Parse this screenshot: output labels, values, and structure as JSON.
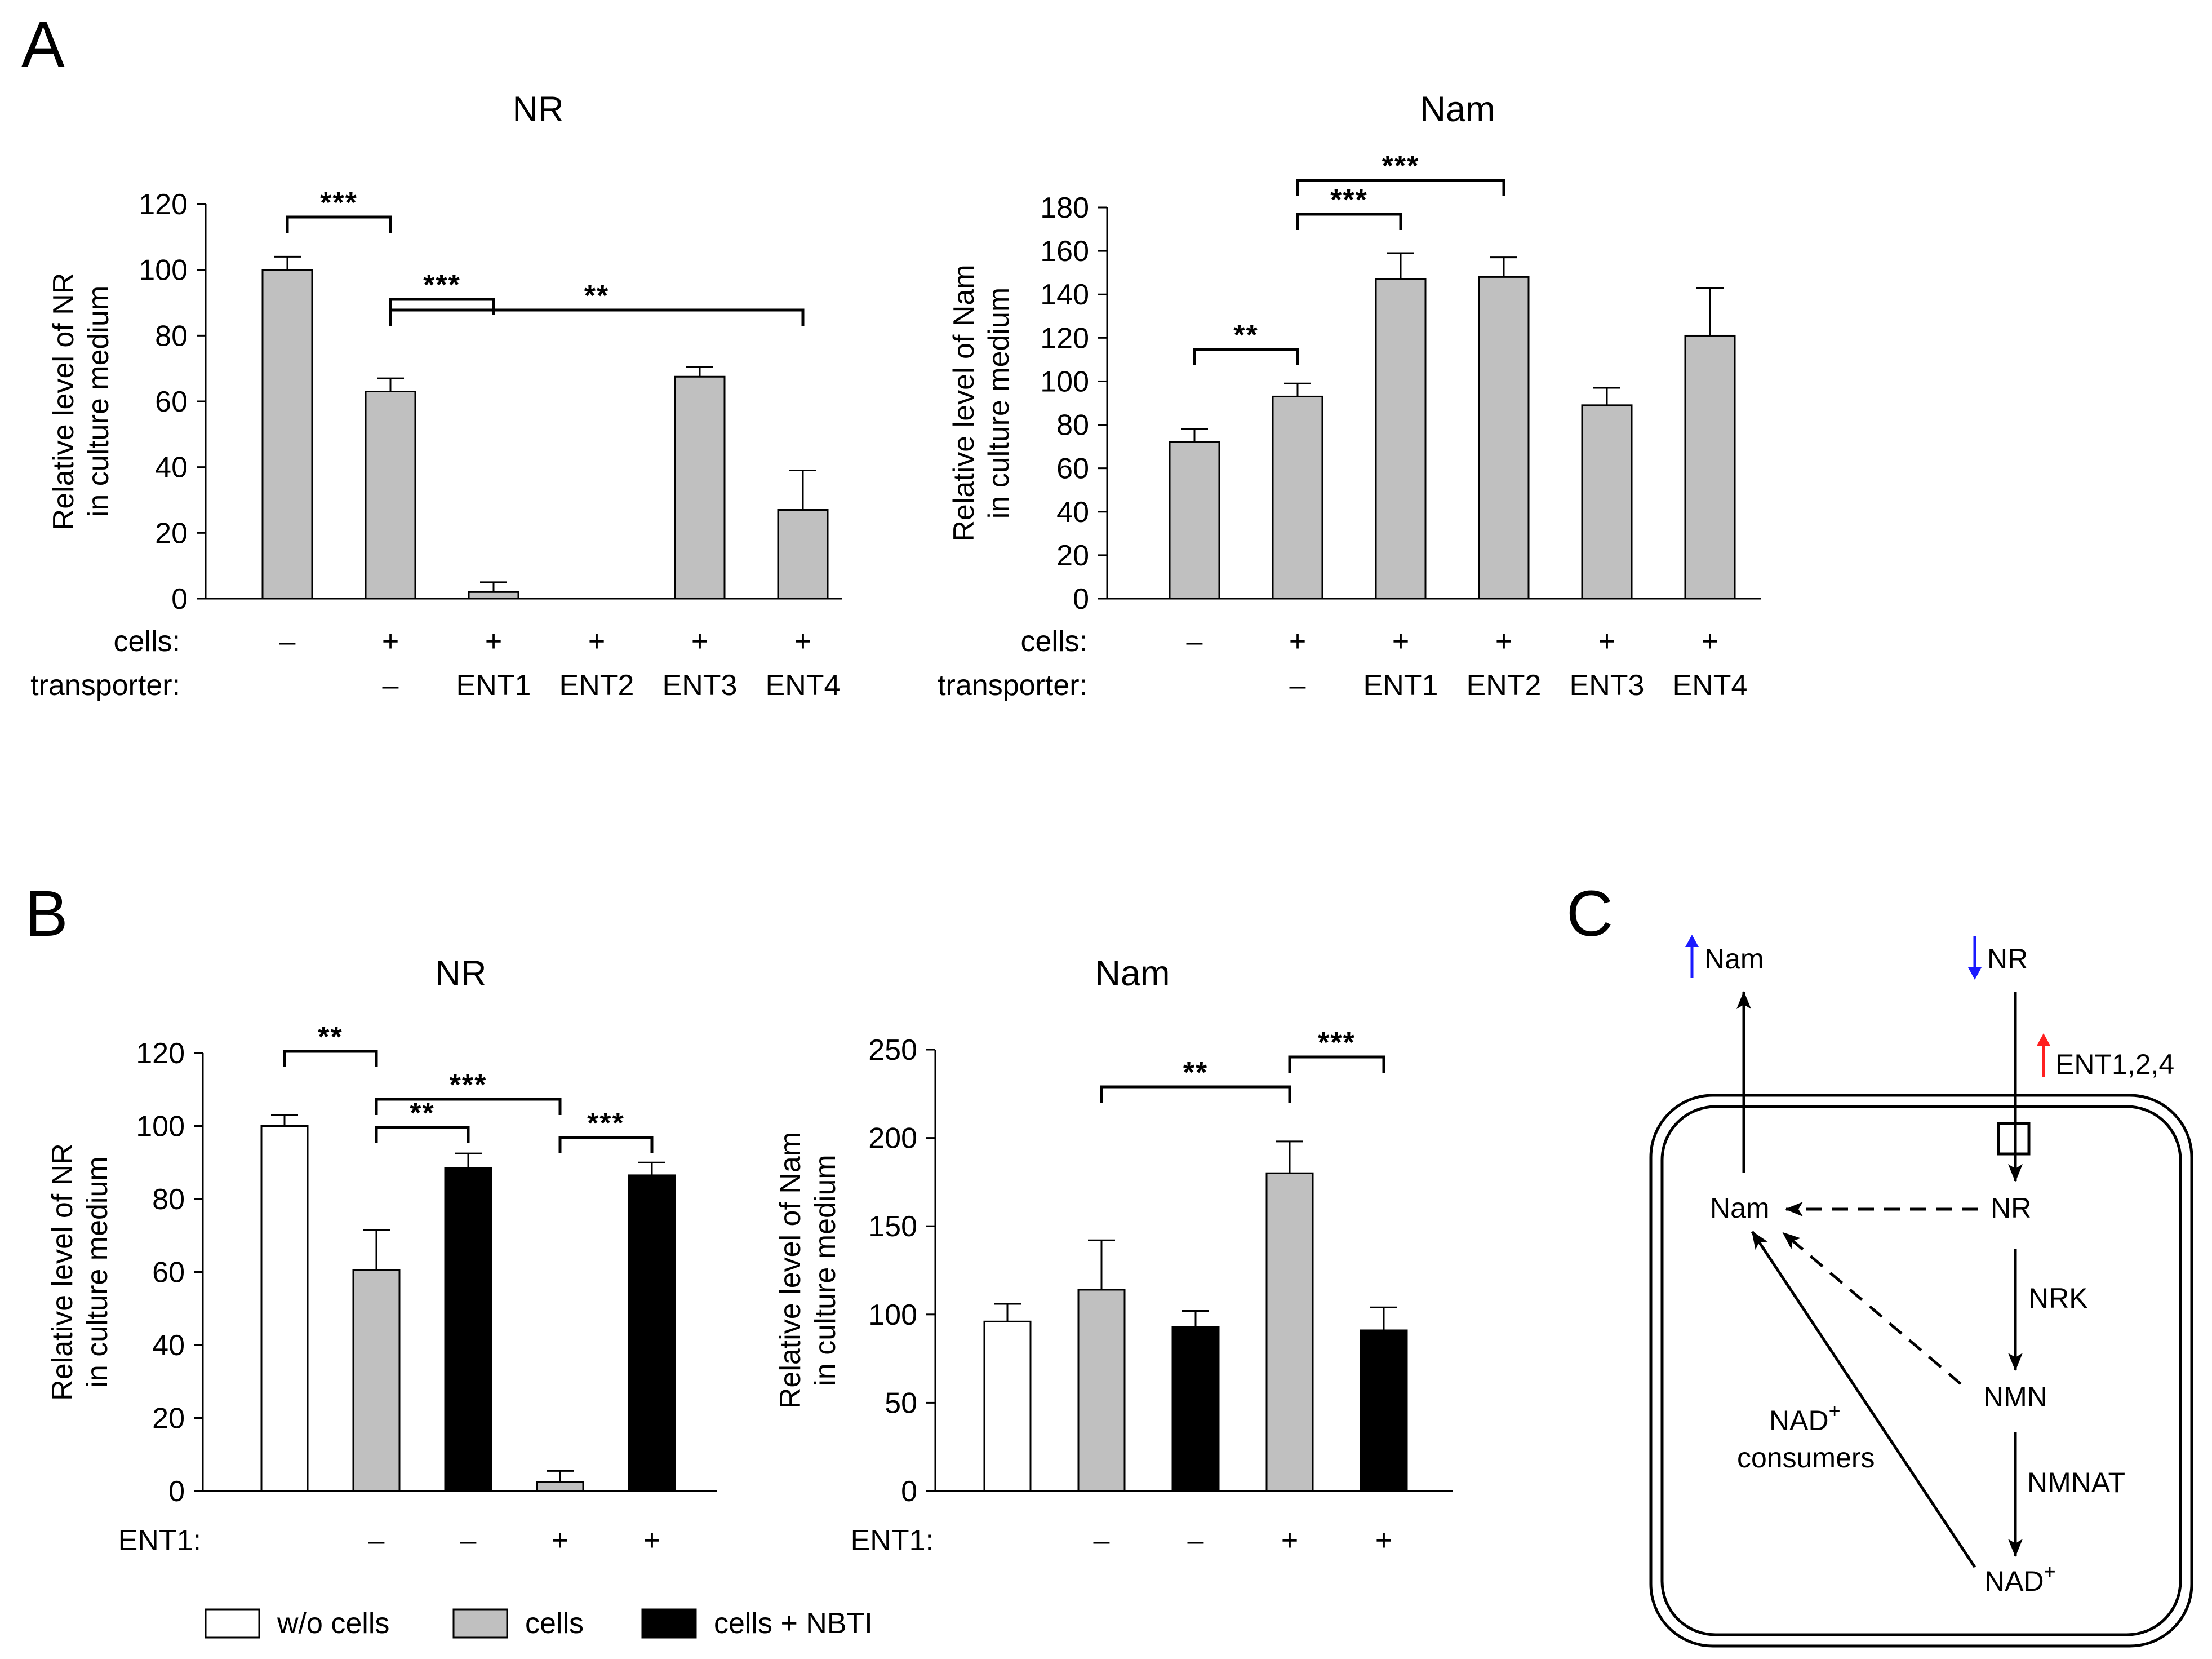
{
  "panels": {
    "a": "A",
    "b": "B",
    "c": "C"
  },
  "chart_data": [
    {
      "id": "A-NR",
      "panel": "A",
      "type": "bar",
      "title": "NR",
      "ylabel": [
        "Relative level of NR",
        "in culture medium"
      ],
      "ylim": [
        0,
        120
      ],
      "yticks": [
        0,
        20,
        40,
        60,
        80,
        100,
        120
      ],
      "row_labels": [
        "cells:",
        "transporter:"
      ],
      "categories": [
        {
          "cells": "–",
          "transporter": ""
        },
        {
          "cells": "+",
          "transporter": "–"
        },
        {
          "cells": "+",
          "transporter": "ENT1"
        },
        {
          "cells": "+",
          "transporter": "ENT2"
        },
        {
          "cells": "+",
          "transporter": "ENT3"
        },
        {
          "cells": "+",
          "transporter": "ENT4"
        }
      ],
      "values": [
        100,
        63,
        2,
        0,
        67.5,
        27
      ],
      "errors": [
        4,
        4,
        3,
        0,
        3,
        12
      ],
      "fills": [
        "gray",
        "gray",
        "gray",
        "gray",
        "gray",
        "gray"
      ],
      "significance": [
        {
          "from": 0,
          "to": 1,
          "label": "***"
        },
        {
          "from": 1,
          "to": 2,
          "label": "***"
        },
        {
          "from": 1,
          "to": 5,
          "label": "**"
        }
      ]
    },
    {
      "id": "A-Nam",
      "panel": "A",
      "type": "bar",
      "title": "Nam",
      "ylabel": [
        "Relative level of Nam",
        "in culture medium"
      ],
      "ylim": [
        0,
        180
      ],
      "yticks": [
        0,
        20,
        40,
        60,
        80,
        100,
        120,
        140,
        160,
        180
      ],
      "row_labels": [
        "cells:",
        "transporter:"
      ],
      "categories": [
        {
          "cells": "–",
          "transporter": ""
        },
        {
          "cells": "+",
          "transporter": "–"
        },
        {
          "cells": "+",
          "transporter": "ENT1"
        },
        {
          "cells": "+",
          "transporter": "ENT2"
        },
        {
          "cells": "+",
          "transporter": "ENT3"
        },
        {
          "cells": "+",
          "transporter": "ENT4"
        }
      ],
      "values": [
        72,
        93,
        147,
        148,
        89,
        121
      ],
      "errors": [
        6,
        6,
        12,
        9,
        8,
        22
      ],
      "fills": [
        "gray",
        "gray",
        "gray",
        "gray",
        "gray",
        "gray"
      ],
      "significance": [
        {
          "from": 0,
          "to": 1,
          "label": "**"
        },
        {
          "from": 1,
          "to": 2,
          "label": "***"
        },
        {
          "from": 1,
          "to": 3,
          "label": "***"
        }
      ]
    },
    {
      "id": "B-NR",
      "panel": "B",
      "type": "bar",
      "title": "NR",
      "ylabel": [
        "Relative level of NR",
        "in culture medium"
      ],
      "ylim": [
        0,
        120
      ],
      "yticks": [
        0,
        20,
        40,
        60,
        80,
        100,
        120
      ],
      "row_labels": [
        "ENT1:"
      ],
      "categories": [
        {
          "ent1": ""
        },
        {
          "ent1": "–"
        },
        {
          "ent1": "–"
        },
        {
          "ent1": "+"
        },
        {
          "ent1": "+"
        }
      ],
      "values": [
        100,
        60.5,
        88.5,
        2.5,
        86.5
      ],
      "errors": [
        3,
        11,
        4,
        3,
        3.5
      ],
      "fills": [
        "white",
        "gray",
        "black",
        "gray",
        "black"
      ],
      "significance": [
        {
          "from": 0,
          "to": 1,
          "label": "**"
        },
        {
          "from": 1,
          "to": 2,
          "label": "**"
        },
        {
          "from": 1,
          "to": 3,
          "label": "***"
        },
        {
          "from": 3,
          "to": 4,
          "label": "***"
        }
      ]
    },
    {
      "id": "B-Nam",
      "panel": "B",
      "type": "bar",
      "title": "Nam",
      "ylabel": [
        "Relative level of Nam",
        "in culture medium"
      ],
      "ylim": [
        0,
        250
      ],
      "yticks": [
        0,
        50,
        100,
        150,
        200,
        250
      ],
      "row_labels": [
        "ENT1:"
      ],
      "categories": [
        {
          "ent1": ""
        },
        {
          "ent1": "–"
        },
        {
          "ent1": "–"
        },
        {
          "ent1": "+"
        },
        {
          "ent1": "+"
        }
      ],
      "values": [
        96,
        114,
        93,
        180,
        91
      ],
      "errors": [
        10,
        28,
        9,
        18,
        13
      ],
      "fills": [
        "white",
        "gray",
        "black",
        "gray",
        "black"
      ],
      "significance": [
        {
          "from": 1,
          "to": 3,
          "label": "**"
        },
        {
          "from": 3,
          "to": 4,
          "label": "***"
        }
      ]
    }
  ],
  "legend": [
    {
      "label": "w/o cells",
      "fill": "white"
    },
    {
      "label": "cells",
      "fill": "gray"
    },
    {
      "label": "cells + NBTI",
      "fill": "black"
    }
  ],
  "colors": {
    "gray": "#c0c0c0",
    "black": "#000000",
    "white": "#ffffff",
    "up_arrow": "#1a1aff",
    "down_arrow": "#1a1aff",
    "transporter_arrow": "#ff2020"
  },
  "diagram": {
    "nam_out": "Nam",
    "nr_out": "NR",
    "transporter": "ENT1,2,4",
    "nam_in": "Nam",
    "nr_in": "NR",
    "nrk": "NRK",
    "nmn": "NMN",
    "nmnat": "NMNAT",
    "nad": "NAD",
    "nad_sup": "+",
    "consumers_nad": "NAD",
    "consumers_sup": "+",
    "consumers": "consumers"
  }
}
